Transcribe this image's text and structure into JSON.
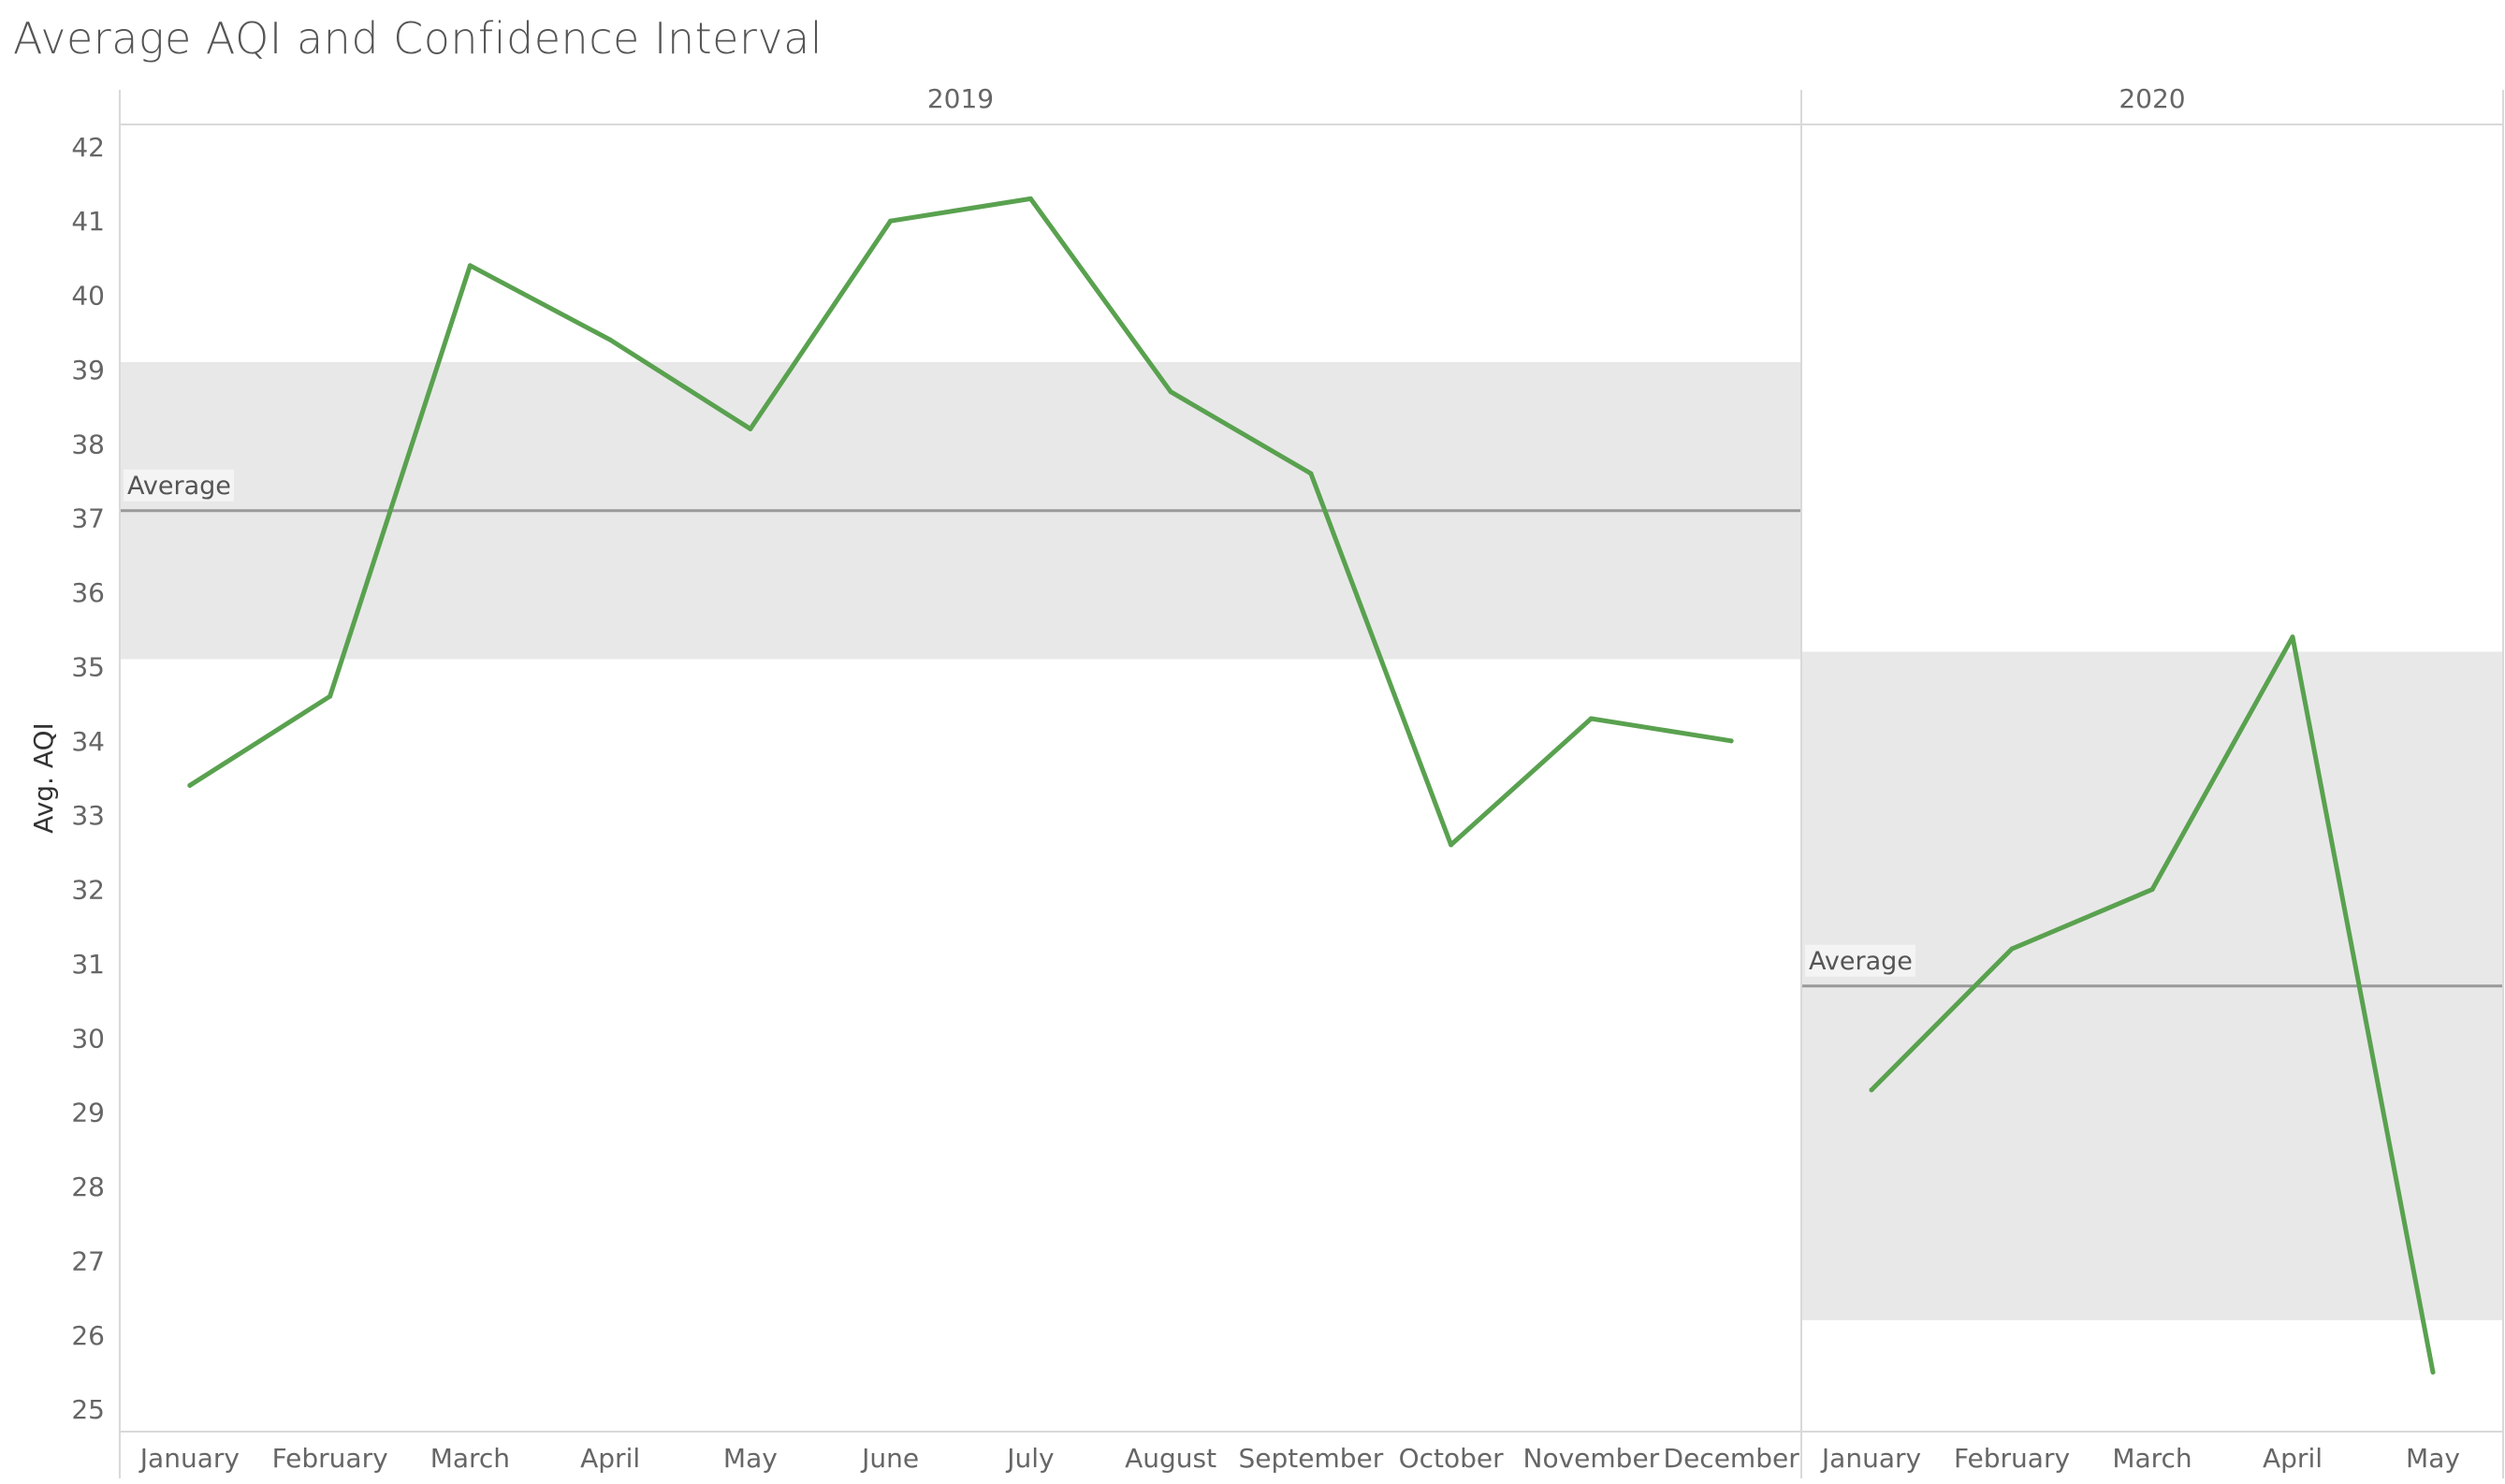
{
  "chart": {
    "title": "Average AQI and Confidence Interval",
    "ylabel": "Avg. AQI",
    "y_ticks": [
      25,
      26,
      27,
      28,
      29,
      30,
      31,
      32,
      33,
      34,
      35,
      36,
      37,
      38,
      39,
      40,
      41,
      42
    ]
  },
  "colors": {
    "line": "#59a14f",
    "band": "#e8e8e8",
    "reference_line": "#999999",
    "grid": "#d9d9d9",
    "text": "#666666"
  },
  "chart_data": {
    "type": "line",
    "title": "Average AQI and Confidence Interval",
    "xlabel": "",
    "ylabel": "Avg. AQI",
    "ylim": [
      24.7,
      42.3
    ],
    "grid": false,
    "panels": [
      {
        "year": "2019",
        "categories": [
          "January",
          "February",
          "March",
          "April",
          "May",
          "June",
          "July",
          "August",
          "September",
          "October",
          "November",
          "December"
        ],
        "values": [
          33.4,
          34.6,
          40.4,
          39.4,
          38.2,
          41.0,
          41.3,
          38.7,
          37.6,
          32.6,
          34.3,
          34.0
        ],
        "average": 37.1,
        "confidence_interval": [
          35.1,
          39.1
        ],
        "average_label": "Average"
      },
      {
        "year": "2020",
        "categories": [
          "January",
          "February",
          "March",
          "April",
          "May"
        ],
        "values": [
          29.3,
          31.2,
          32.0,
          35.4,
          25.5
        ],
        "average": 30.7,
        "confidence_interval": [
          26.2,
          35.2
        ],
        "average_label": "Average"
      }
    ]
  }
}
